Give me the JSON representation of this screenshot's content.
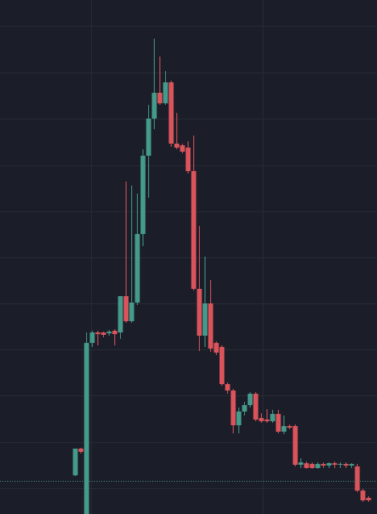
{
  "chart_data": {
    "type": "candlestick",
    "categories": [
      null,
      null,
      null,
      null,
      null,
      null,
      null,
      null,
      null,
      null,
      null,
      null,
      null,
      null,
      null,
      null,
      null,
      null,
      null,
      null,
      null,
      null,
      null,
      null,
      null,
      null,
      null,
      null,
      null,
      null,
      null,
      null,
      null,
      null,
      null,
      null,
      null,
      null,
      null,
      null,
      null,
      null,
      null,
      null,
      null,
      null,
      null,
      null,
      null,
      null,
      null,
      null,
      null
    ],
    "open": [
      48,
      81,
      0,
      212,
      225,
      225,
      224,
      227,
      225,
      270,
      239,
      262,
      347,
      444,
      490,
      522,
      509,
      535,
      459,
      457,
      454,
      425,
      279,
      221,
      261,
      212,
      207,
      161,
      153,
      110,
      127,
      135,
      149,
      119,
      117,
      115,
      124,
      102,
      109,
      109,
      61,
      63,
      62,
      57,
      62,
      60,
      63,
      61,
      62,
      60,
      59,
      29,
      20
    ],
    "high": [
      81,
      82,
      225,
      227,
      227,
      226,
      228,
      229,
      270,
      412,
      407,
      397,
      452,
      507,
      589,
      567,
      549,
      537,
      497,
      459,
      462,
      469,
      357,
      319,
      290,
      214,
      209,
      163,
      155,
      132,
      139,
      151,
      151,
      125,
      130,
      129,
      129,
      122,
      111,
      111,
      69,
      65,
      64,
      64,
      64,
      64,
      65,
      64,
      64,
      63,
      62,
      31,
      22
    ],
    "low": [
      47,
      75,
      0,
      207,
      209,
      219,
      221,
      209,
      217,
      237,
      237,
      259,
      332,
      392,
      477,
      507,
      507,
      455,
      452,
      447,
      422,
      277,
      202,
      207,
      201,
      197,
      159,
      149,
      100,
      100,
      122,
      132,
      115,
      113,
      113,
      113,
      100,
      99,
      105,
      59,
      57,
      56,
      56,
      56,
      57,
      57,
      57,
      57,
      57,
      57,
      27,
      15,
      15
    ],
    "close": [
      81,
      77,
      212,
      225,
      223,
      222,
      226,
      223,
      270,
      239,
      262,
      347,
      444,
      490,
      522,
      509,
      535,
      459,
      454,
      449,
      425,
      279,
      221,
      261,
      205,
      200,
      161,
      153,
      110,
      127,
      135,
      149,
      117,
      115,
      115,
      124,
      102,
      109,
      107,
      61,
      64,
      57,
      57,
      62,
      60,
      63,
      61,
      62,
      60,
      62,
      29,
      17,
      17
    ],
    "up_color": "#459b8b",
    "down_color": "#db545c",
    "ylim": [
      0,
      637
    ],
    "yticks": [
      32,
      89,
      147,
      204,
      261,
      318,
      375,
      432,
      490,
      547,
      605
    ],
    "grid": true,
    "price_line": 41
  }
}
